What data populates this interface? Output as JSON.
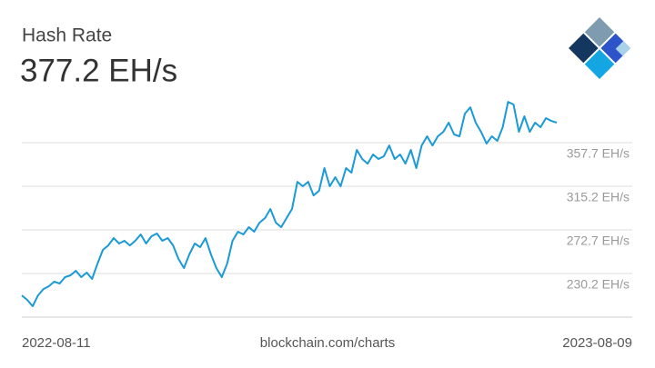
{
  "chart_data": {
    "type": "line",
    "title": "Hash Rate",
    "current_value": "377.2 EH/s",
    "x_labels": [
      "2022-08-11",
      "2023-08-09"
    ],
    "source": "blockchain.com/charts",
    "color": "#1a9ad6",
    "grid": true,
    "ylim": [
      187.7,
      408.2
    ],
    "yticks": [
      {
        "value": 230.2,
        "label": "230.2 EH/s"
      },
      {
        "value": 272.7,
        "label": "272.7 EH/s"
      },
      {
        "value": 315.2,
        "label": "315.2 EH/s"
      },
      {
        "value": 357.7,
        "label": "357.7 EH/s"
      }
    ],
    "values": [
      208.9,
      204.5,
      198.3,
      208.9,
      215.1,
      217.8,
      222.2,
      220.5,
      226.7,
      228.4,
      232.9,
      226.7,
      231.1,
      224.9,
      239.9,
      253.2,
      257.6,
      264.7,
      259.4,
      262.1,
      257.6,
      262.1,
      268.3,
      259.4,
      266.5,
      269.2,
      262.1,
      264.7,
      257.6,
      244.4,
      235.5,
      248.8,
      259.4,
      255.9,
      264.7,
      248.8,
      235.5,
      226.7,
      239.9,
      262.1,
      270.9,
      268.3,
      275.4,
      270.9,
      279.8,
      284.2,
      293.1,
      279.8,
      275.4,
      284.2,
      293.1,
      319.6,
      315.2,
      319.6,
      306.3,
      310.8,
      332.9,
      315.2,
      324.1,
      315.2,
      332.9,
      328.5,
      350.6,
      341.8,
      337.3,
      346.2,
      341.8,
      344.4,
      355.0,
      341.8,
      346.2,
      337.3,
      350.6,
      332.9,
      355.0,
      363.9,
      355.0,
      363.9,
      368.3,
      377.2,
      365.7,
      363.9,
      386.0,
      392.2,
      377.2,
      368.3,
      356.8,
      363.9,
      359.5,
      372.8,
      397.5,
      394.9,
      368.3,
      383.4,
      368.3,
      377.2,
      372.8,
      381.6,
      378.9,
      377.2
    ]
  }
}
